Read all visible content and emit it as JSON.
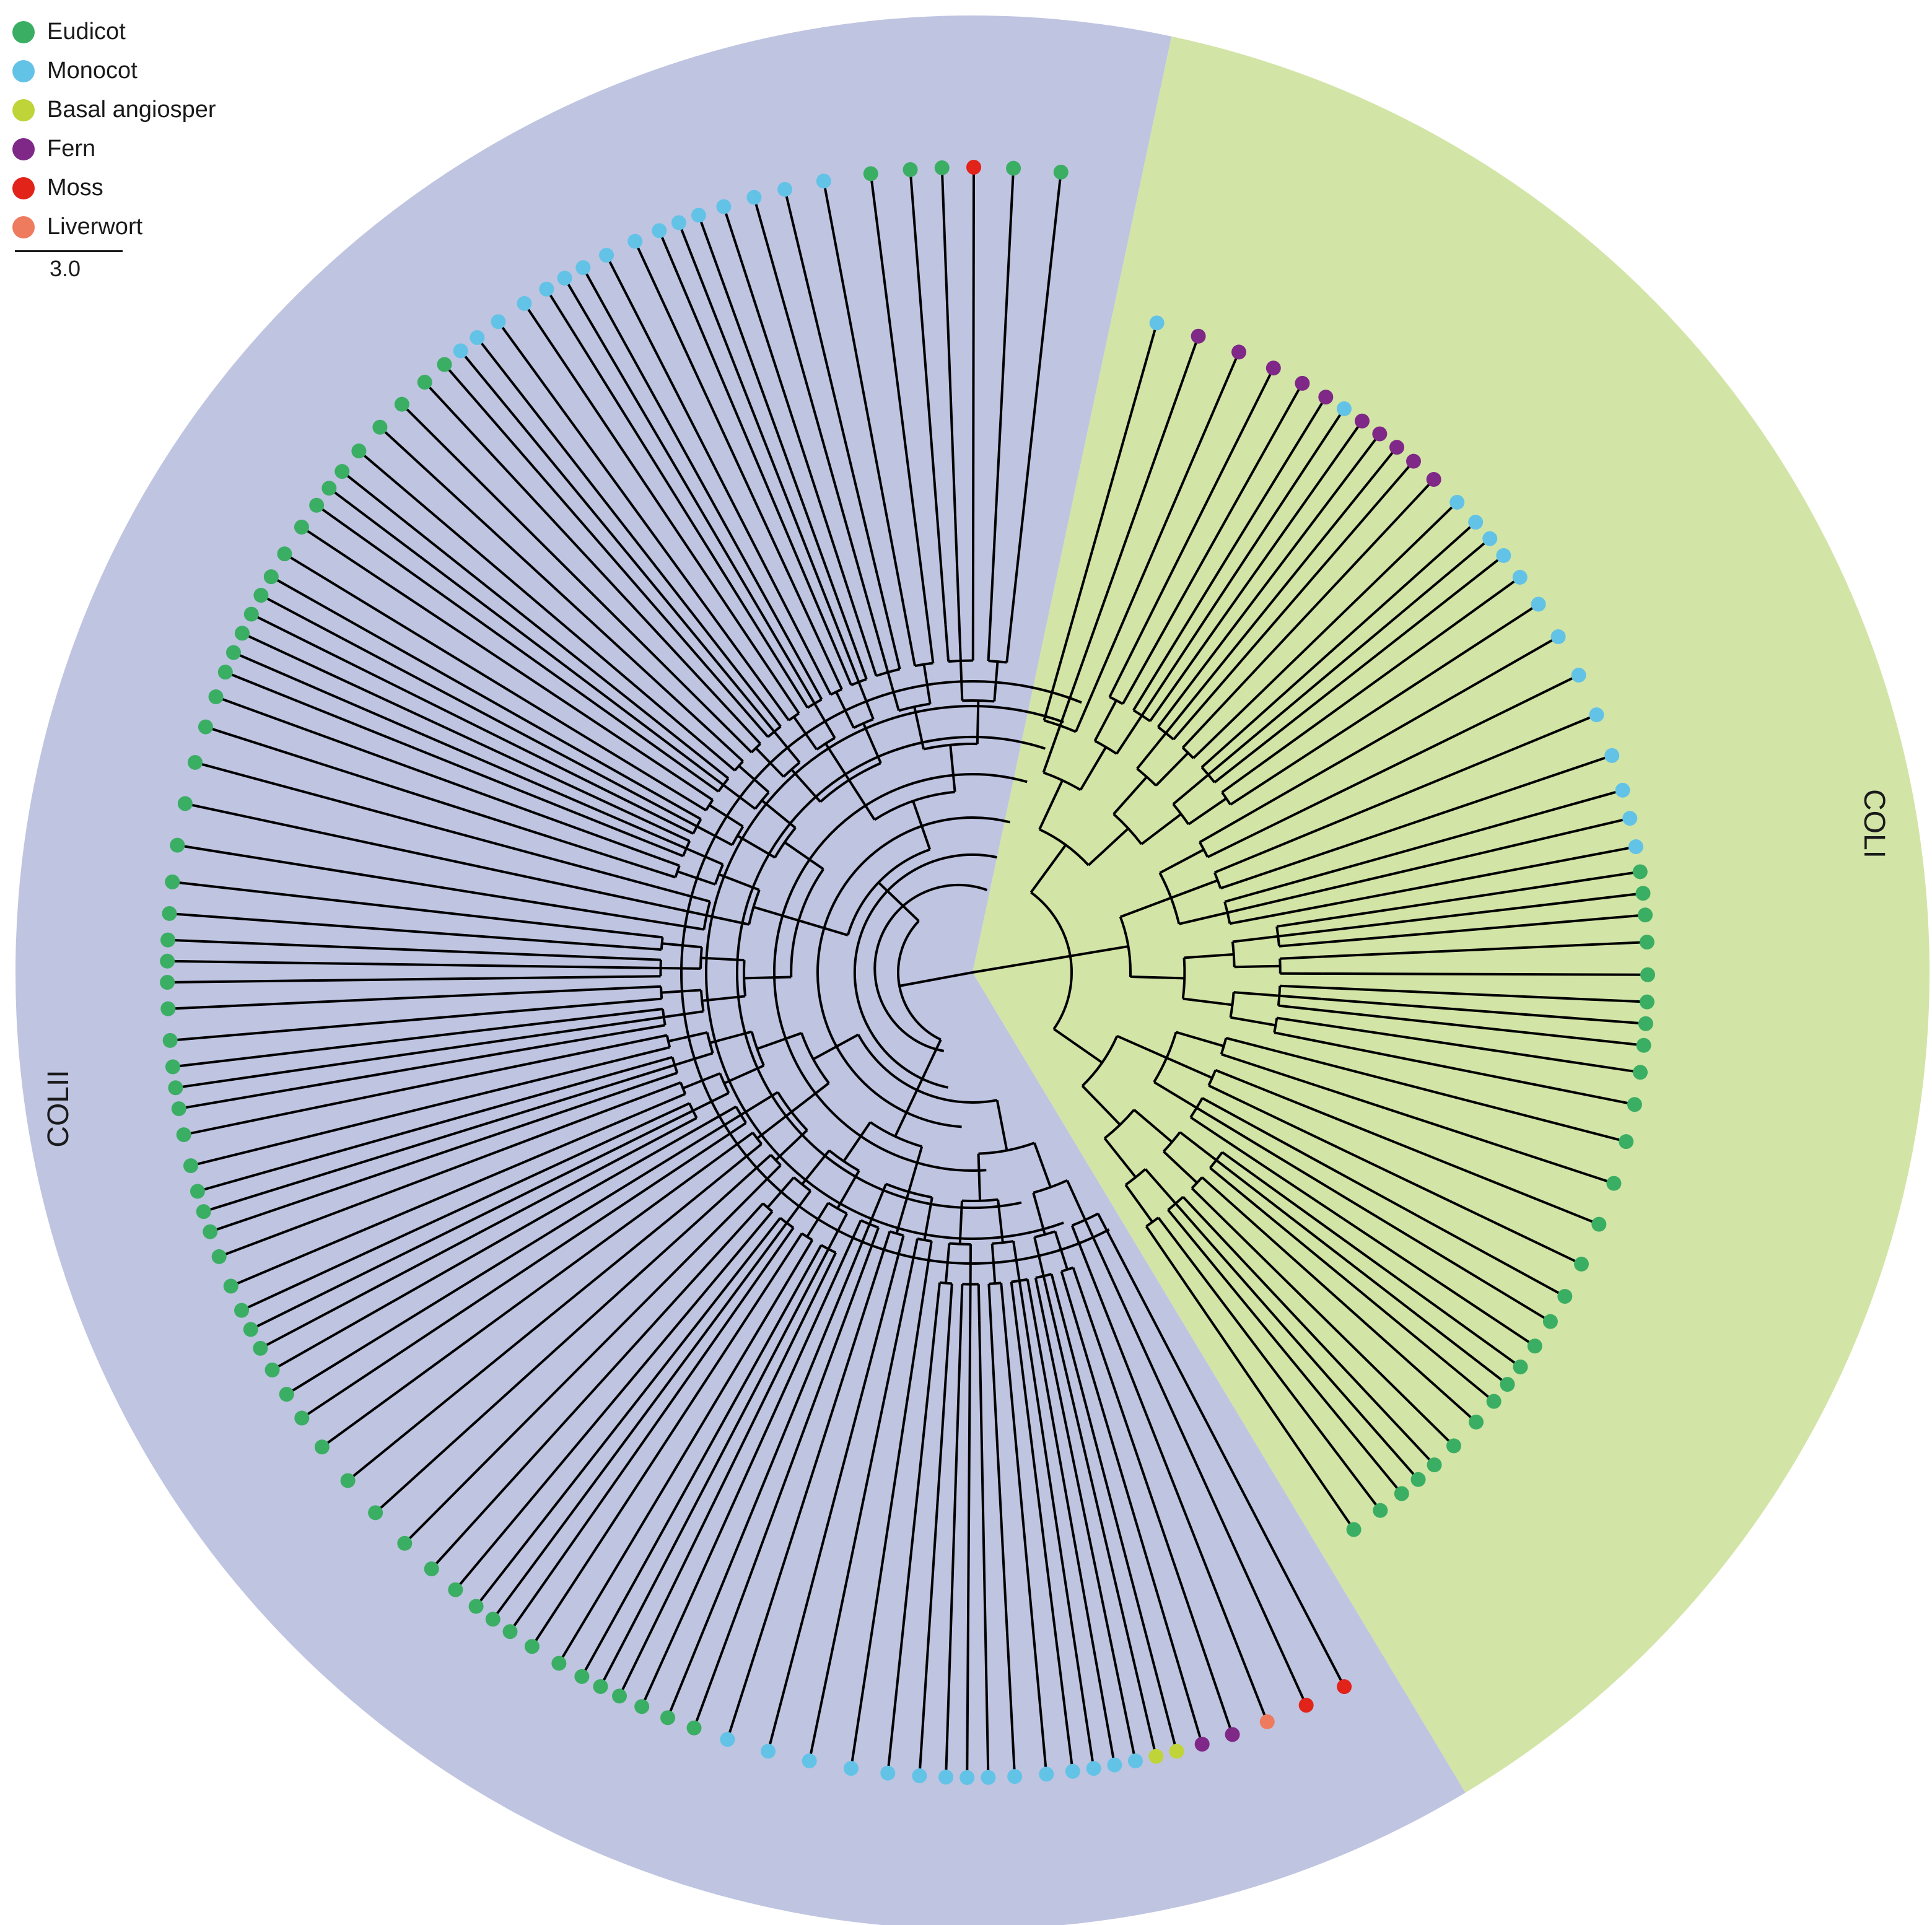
{
  "legend": {
    "items": [
      {
        "label": "Eudicot",
        "color": "#3aae63"
      },
      {
        "label": "Monocot",
        "color": "#62c3e7"
      },
      {
        "label": "Basal angiosper",
        "color": "#bfd439"
      },
      {
        "label": "Fern",
        "color": "#7f2887"
      },
      {
        "label": "Moss",
        "color": "#e2231a"
      },
      {
        "label": "Liverwort",
        "color": "#ee7b5e"
      }
    ]
  },
  "scale_bar": {
    "label": "3.0"
  },
  "clades": [
    {
      "label": "COLI",
      "color": "#d3e4a7"
    },
    {
      "label": "COLII",
      "color": "#bfc4e1"
    }
  ],
  "tree": {
    "branch_color": "#000000"
  }
}
